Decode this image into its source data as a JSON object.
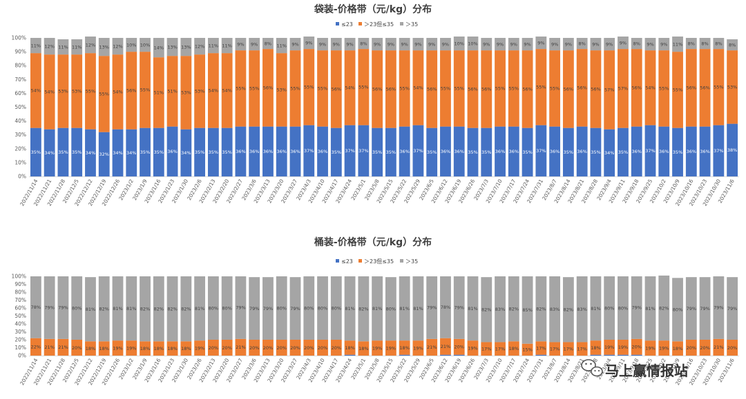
{
  "colors": {
    "low": "#4472C4",
    "mid": "#ED7D31",
    "high": "#A5A5A5",
    "axis": "#D9D9D9",
    "text": "#595959"
  },
  "watermark": {
    "text": "马上赢情报站",
    "icon": "wechat-icon"
  },
  "chart_data": [
    {
      "type": "bar",
      "stacked": true,
      "title": "袋装-价格带（元/kg）分布",
      "legend": [
        "≤23",
        "＞23但≤35",
        "＞35"
      ],
      "yticks": [
        "0%",
        "10%",
        "20%",
        "30%",
        "40%",
        "50%",
        "60%",
        "70%",
        "80%",
        "90%",
        "100%"
      ],
      "ylim": [
        0,
        100
      ],
      "categories": [
        "2022/11/14",
        "2022/11/21",
        "2022/11/28",
        "2022/12/5",
        "2022/12/12",
        "2022/12/19",
        "2022/12/26",
        "2023/1/2",
        "2023/1/9",
        "2023/1/16",
        "2023/1/23",
        "2023/1/30",
        "2023/2/6",
        "2023/2/13",
        "2023/2/20",
        "2023/2/27",
        "2023/3/6",
        "2023/3/13",
        "2023/3/20",
        "2023/3/27",
        "2023/4/3",
        "2023/4/10",
        "2023/4/17",
        "2023/4/24",
        "2023/5/1",
        "2023/5/8",
        "2023/5/15",
        "2023/5/22",
        "2023/5/29",
        "2023/6/5",
        "2023/6/12",
        "2023/6/19",
        "2023/6/26",
        "2023/7/3",
        "2023/7/10",
        "2023/7/17",
        "2023/7/24",
        "2023/7/31",
        "2023/8/7",
        "2023/8/14",
        "2023/8/21",
        "2023/8/28",
        "2023/9/4",
        "2023/9/11",
        "2023/9/18",
        "2023/9/25",
        "2023/10/2",
        "2023/10/9",
        "2023/10/16",
        "2023/10/23",
        "2023/10/30",
        "2023/11/6"
      ],
      "series": [
        {
          "name": "≤23",
          "values": [
            35,
            34,
            35,
            35,
            34,
            32,
            34,
            34,
            35,
            35,
            36,
            34,
            35,
            35,
            35,
            36,
            36,
            36,
            36,
            36,
            37,
            36,
            35,
            37,
            37,
            35,
            35,
            36,
            37,
            35,
            36,
            36,
            35,
            35,
            36,
            36,
            35,
            37,
            36,
            35,
            36,
            35,
            34,
            35,
            36,
            37,
            36,
            35,
            36,
            36,
            37,
            38
          ]
        },
        {
          "name": "＞23但≤35",
          "values": [
            54,
            54,
            53,
            53,
            55,
            55,
            54,
            56,
            55,
            51,
            51,
            53,
            53,
            54,
            54,
            55,
            55,
            56,
            53,
            55,
            55,
            55,
            56,
            54,
            55,
            56,
            56,
            55,
            54,
            56,
            55,
            55,
            56,
            56,
            55,
            55,
            56,
            55,
            55,
            56,
            56,
            56,
            57,
            57,
            56,
            54,
            55,
            55,
            56,
            56,
            55,
            53
          ]
        },
        {
          "name": "＞35",
          "values": [
            11,
            12,
            11,
            11,
            12,
            13,
            12,
            10,
            10,
            14,
            13,
            13,
            12,
            11,
            11,
            9,
            9,
            8,
            11,
            9,
            9,
            9,
            9,
            9,
            8,
            9,
            9,
            9,
            9,
            9,
            9,
            10,
            10,
            9,
            9,
            9,
            9,
            9,
            9,
            9,
            8,
            9,
            9,
            9,
            8,
            9,
            9,
            11,
            8,
            8,
            8,
            8
          ]
        }
      ]
    },
    {
      "type": "bar",
      "stacked": true,
      "title": "桶装-价格带（元/kg）分布",
      "legend": [
        "≤23",
        "＞23但≤35",
        "＞35"
      ],
      "yticks": [
        "0%",
        "10%",
        "20%",
        "30%",
        "40%",
        "50%",
        "60%",
        "70%",
        "80%",
        "90%",
        "100%"
      ],
      "ylim": [
        0,
        100
      ],
      "categories": [
        "2022/11/14",
        "2022/11/21",
        "2022/11/28",
        "2022/12/5",
        "2022/12/12",
        "2022/12/19",
        "2022/12/26",
        "2023/1/2",
        "2023/1/9",
        "2023/1/16",
        "2023/1/23",
        "2023/1/30",
        "2023/2/6",
        "2023/2/13",
        "2023/2/20",
        "2023/2/27",
        "2023/3/6",
        "2023/3/13",
        "2023/3/20",
        "2023/3/27",
        "2023/4/3",
        "2023/4/10",
        "2023/4/17",
        "2023/4/24",
        "2023/5/1",
        "2023/5/8",
        "2023/5/15",
        "2023/5/22",
        "2023/5/29",
        "2023/6/5",
        "2023/6/12",
        "2023/6/19",
        "2023/6/26",
        "2023/7/3",
        "2023/7/10",
        "2023/7/17",
        "2023/7/24",
        "2023/7/31",
        "2023/8/7",
        "2023/8/14",
        "2023/8/21",
        "2023/8/28",
        "2023/9/4",
        "2023/9/11",
        "2023/9/18",
        "2023/9/25",
        "2023/10/2",
        "2023/10/9",
        "2023/10/16",
        "2023/10/23",
        "2023/10/30",
        "2023/11/6"
      ],
      "series": [
        {
          "name": "≤23",
          "values": [
            0,
            0,
            0,
            0,
            0,
            0,
            0,
            0,
            0,
            0,
            0,
            0,
            0,
            0,
            0,
            0,
            0,
            0,
            0,
            0,
            0,
            0,
            0,
            1,
            0,
            0,
            0,
            1,
            0,
            0,
            1,
            1,
            0,
            0,
            0,
            0,
            0,
            1,
            0,
            0,
            0,
            1,
            1,
            1,
            1,
            0,
            0,
            0,
            0,
            0,
            0,
            0
          ]
        },
        {
          "name": "＞23但≤35",
          "values": [
            22,
            21,
            21,
            20,
            18,
            18,
            19,
            19,
            18,
            18,
            18,
            18,
            19,
            20,
            20,
            21,
            20,
            20,
            20,
            20,
            20,
            20,
            20,
            18,
            18,
            19,
            19,
            18,
            19,
            21,
            21,
            20,
            19,
            17,
            17,
            18,
            15,
            17,
            17,
            17,
            17,
            18,
            19,
            19,
            20,
            19,
            19,
            18,
            20,
            20,
            21,
            20
          ]
        },
        {
          "name": "＞35",
          "values": [
            78,
            79,
            79,
            80,
            81,
            82,
            81,
            81,
            82,
            82,
            82,
            82,
            81,
            80,
            80,
            79,
            79,
            79,
            80,
            79,
            80,
            80,
            80,
            81,
            82,
            81,
            80,
            81,
            81,
            79,
            78,
            79,
            81,
            82,
            83,
            82,
            85,
            82,
            83,
            82,
            83,
            81,
            80,
            80,
            79,
            81,
            82,
            80,
            79,
            79,
            79,
            79
          ]
        }
      ]
    }
  ]
}
